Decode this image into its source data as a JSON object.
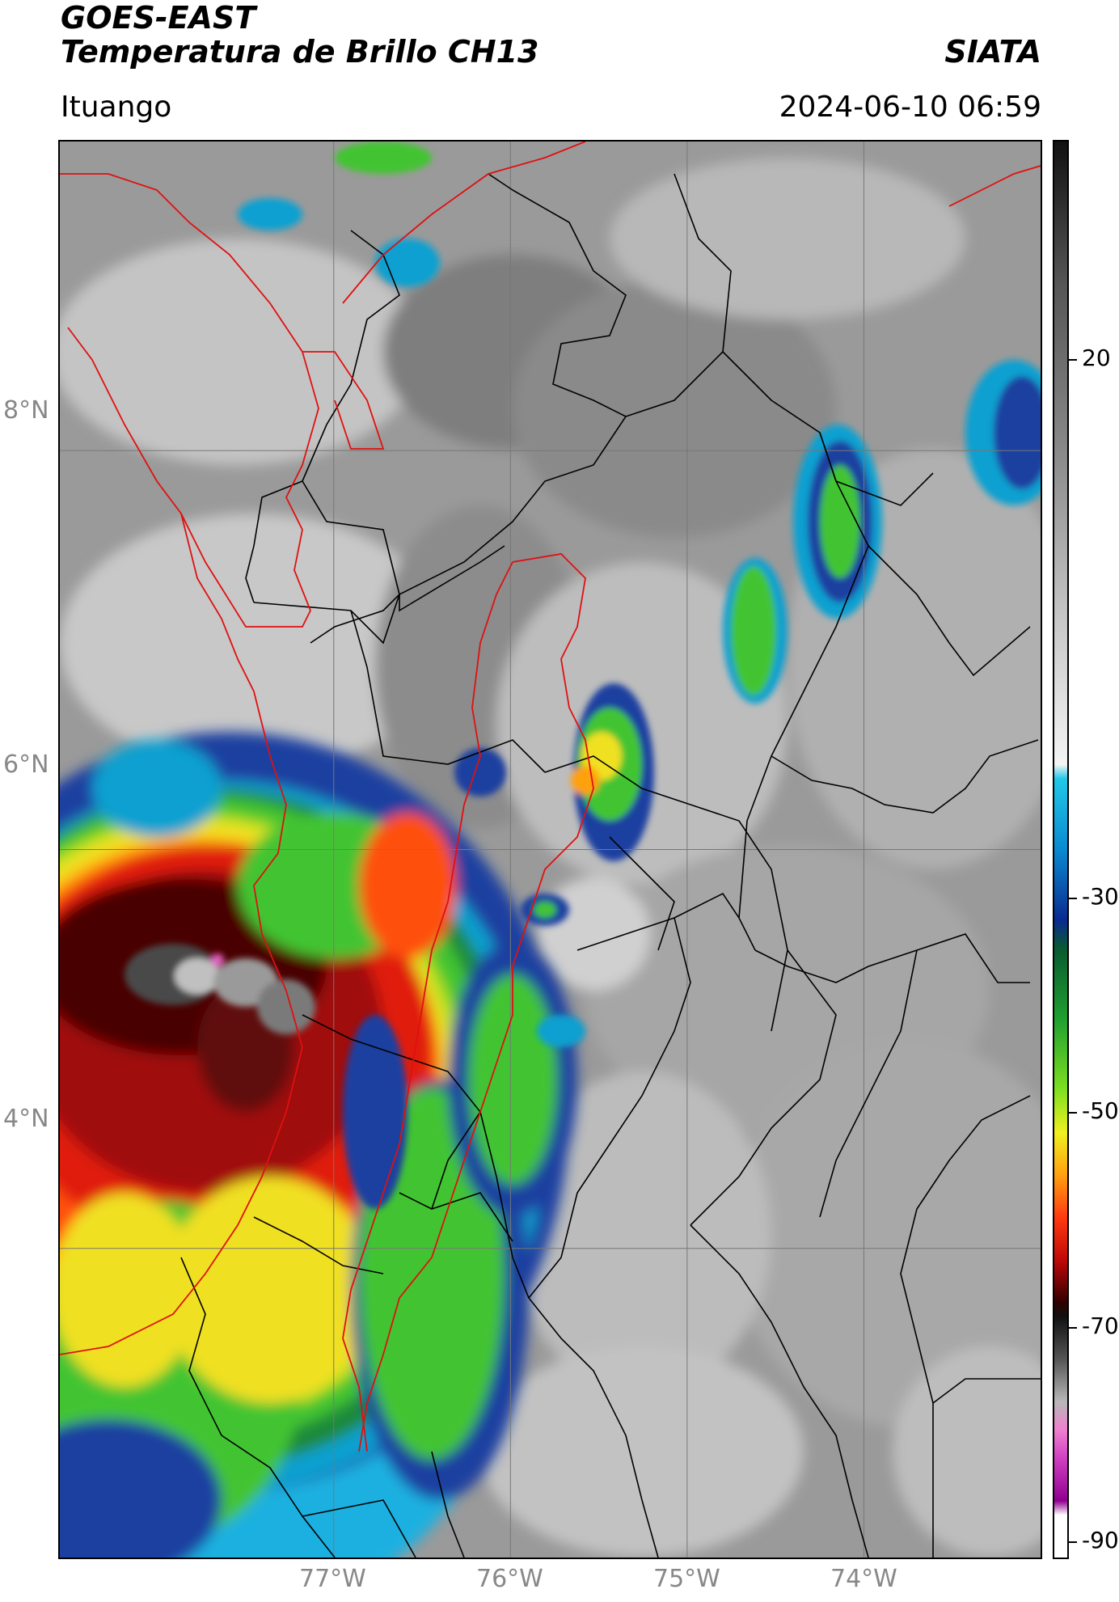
{
  "header": {
    "satellite": "GOES-EAST",
    "product": "Temperatura de Brillo CH13",
    "brand": "SIATA",
    "region": "Ituango",
    "datetime": "2024-06-10 06:59"
  },
  "map": {
    "lat_ticks": [
      "8°N",
      "6°N",
      "4°N"
    ],
    "lon_ticks": [
      "77°W",
      "76°W",
      "75°W",
      "74°W"
    ],
    "lat_values": [
      8,
      6,
      4
    ],
    "lon_values": [
      -77,
      -76,
      -75,
      -74
    ],
    "extent": {
      "lon_min": -78.55,
      "lon_max": -73.0,
      "lat_min": 2.45,
      "lat_max": 9.55
    },
    "colors": {
      "background_gray": "#9a9a9a",
      "department_border": "#000000",
      "country_border": "#e01010",
      "gridline": "#777777"
    }
  },
  "colorbar": {
    "ticks": [
      "20",
      "-30",
      "-50",
      "-70",
      "-90"
    ],
    "tick_values": [
      20,
      -30,
      -50,
      -70,
      -90
    ],
    "range": [
      -90,
      45
    ]
  }
}
